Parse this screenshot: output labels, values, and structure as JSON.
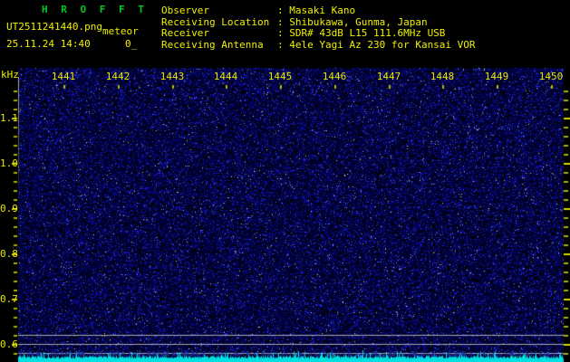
{
  "header": {
    "title": "H R O F F T",
    "filename": "UT2511241440.png",
    "station_label": "meteor",
    "datetime": "25.11.24 14:40",
    "counter": "0_",
    "separator": ": ",
    "info_rows": [
      {
        "label": "Observer",
        "value": "Masaki Kano"
      },
      {
        "label": "Receiving Location",
        "value": "Shibukawa, Gunma, Japan"
      },
      {
        "label": "Receiver",
        "value": "SDR# 43dB L15 111.6MHz USB"
      },
      {
        "label": "Receiving Antenna",
        "value": "4ele Yagi Az 230 for Kansai VOR"
      }
    ]
  },
  "chart_data": {
    "type": "heatmap",
    "title": "HROFFT 10-minute radio meteor spectrogram",
    "description": "Uniform dark-blue background noise; no meteor echo streaks visible. Cyan signal-level trace along bottom with three gray reference lines.",
    "x_ticks": [
      "1441",
      "1442",
      "1443",
      "1444",
      "1445",
      "1446",
      "1447",
      "1448",
      "1449",
      "1450"
    ],
    "ylabel": "kHz",
    "y_ticks": [
      "1.1",
      "1.0",
      "0.9",
      "0.8",
      "0.7",
      "0.6"
    ],
    "y_range_khz": [
      0.58,
      1.21
    ],
    "grid": "minor ticks every 0.02 kHz on left and right edges",
    "legend": "none",
    "reference_line_count": 3,
    "noise_color": "#0000c8",
    "level_bar_color": "#00e0e0",
    "tick_color": "#c8c800"
  },
  "colors": {
    "background": "#000000",
    "title_green": "#00cc22",
    "text_yellow": "#f0f000"
  }
}
